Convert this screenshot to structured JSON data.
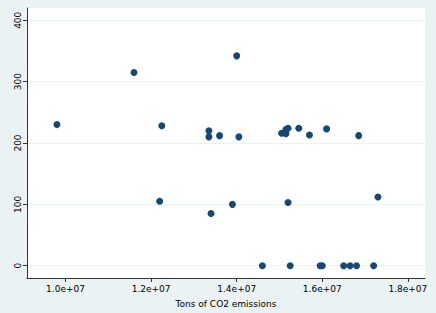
{
  "chart_data": {
    "type": "scatter",
    "xlabel": "Tons of CO2 emissions",
    "x": [
      9800000,
      11600000,
      12250000,
      12200000,
      13350000,
      13350000,
      13400000,
      13600000,
      13900000,
      14000000,
      14050000,
      14600000,
      15050000,
      15150000,
      15150000,
      15200000,
      15200000,
      15250000,
      15450000,
      15700000,
      16100000,
      15950000,
      16000000,
      16500000,
      16650000,
      16800000,
      16850000,
      17200000,
      17300000
    ],
    "values": [
      230,
      315,
      228,
      105,
      220,
      210,
      85,
      212,
      100,
      342,
      210,
      0,
      216,
      215,
      222,
      224,
      103,
      0,
      224,
      213,
      223,
      0,
      0,
      0,
      0,
      0,
      212,
      0,
      112
    ],
    "color": "#1a476f",
    "marker": "circle",
    "xlim": [
      9100000,
      18400000
    ],
    "xticks": [
      {
        "value": 10000000,
        "label": "1.0e+07"
      },
      {
        "value": 12000000,
        "label": "1.2e+07"
      },
      {
        "value": 14000000,
        "label": "1.4e+07"
      },
      {
        "value": 16000000,
        "label": "1.6e+07"
      },
      {
        "value": 18000000,
        "label": "1.8e+07"
      }
    ],
    "ylim": [
      -20,
      420
    ],
    "yticks": [
      0,
      100,
      200,
      300,
      400
    ],
    "grid": true
  }
}
